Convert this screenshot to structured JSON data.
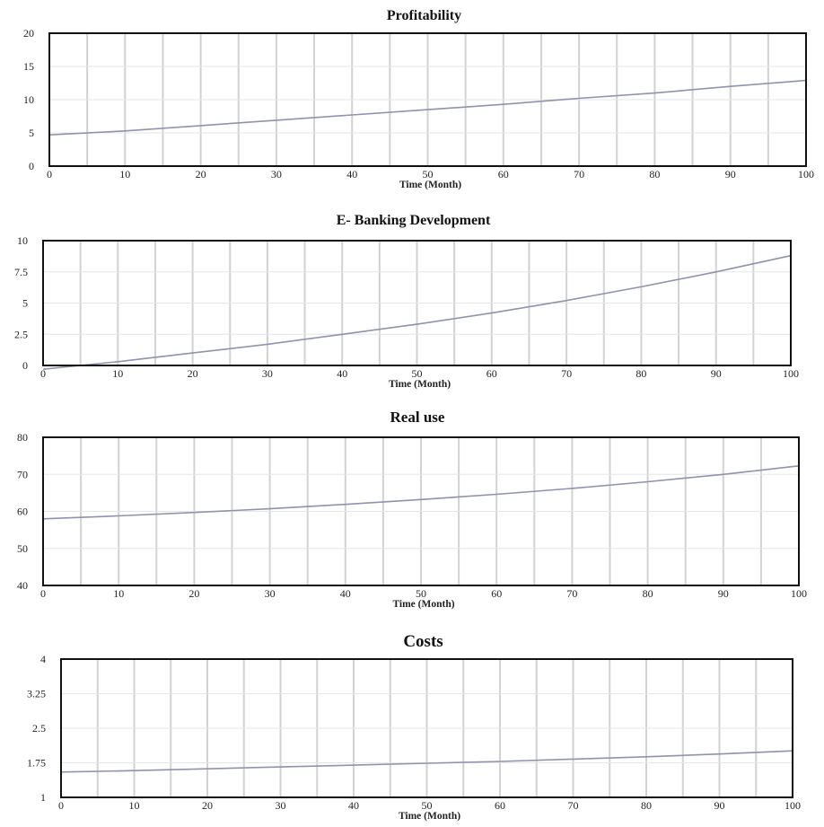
{
  "colors": {
    "series_line": "#8f93ad",
    "grid": "#d2d2d2",
    "frame": "#111111"
  },
  "chart_data": [
    {
      "type": "line",
      "title": "Profitability",
      "xlabel": "Time (Month)",
      "ylabel": "",
      "xlim": [
        0,
        100
      ],
      "ylim": [
        0,
        20
      ],
      "xticks": [
        "0",
        "10",
        "20",
        "30",
        "40",
        "50",
        "60",
        "70",
        "80",
        "90",
        "100"
      ],
      "yticks": [
        "0",
        "5",
        "10",
        "15",
        "20"
      ],
      "grid": "vertical",
      "series": [
        {
          "x": [
            0,
            10,
            20,
            30,
            40,
            50,
            60,
            70,
            80,
            90,
            100
          ],
          "y": [
            4.7,
            5.3,
            6.1,
            6.9,
            7.7,
            8.5,
            9.3,
            10.2,
            11.0,
            12.0,
            12.9
          ]
        }
      ]
    },
    {
      "type": "line",
      "title": "E- Banking Development",
      "xlabel": "Time (Month)",
      "ylabel": "",
      "xlim": [
        0,
        100
      ],
      "ylim": [
        0,
        10
      ],
      "xticks": [
        "0",
        "10",
        "20",
        "30",
        "40",
        "50",
        "60",
        "70",
        "80",
        "90",
        "100"
      ],
      "yticks": [
        "0",
        "2.5",
        "5",
        "7.5",
        "10"
      ],
      "grid": "vertical",
      "series": [
        {
          "x": [
            0,
            10,
            20,
            30,
            40,
            50,
            60,
            70,
            80,
            90,
            100
          ],
          "y": [
            -0.3,
            0.3,
            1.0,
            1.7,
            2.5,
            3.3,
            4.2,
            5.2,
            6.3,
            7.5,
            8.8
          ]
        }
      ]
    },
    {
      "type": "line",
      "title": "Real use",
      "xlabel": "Time (Month)",
      "ylabel": "",
      "xlim": [
        0,
        100
      ],
      "ylim": [
        40,
        80
      ],
      "xticks": [
        "0",
        "10",
        "20",
        "30",
        "40",
        "50",
        "60",
        "70",
        "80",
        "90",
        "100"
      ],
      "yticks": [
        "40",
        "50",
        "60",
        "70",
        "80"
      ],
      "grid": "vertical",
      "series": [
        {
          "x": [
            0,
            10,
            20,
            30,
            40,
            50,
            60,
            70,
            80,
            90,
            100
          ],
          "y": [
            58.0,
            58.8,
            59.7,
            60.7,
            61.9,
            63.2,
            64.6,
            66.2,
            68.0,
            70.0,
            72.3
          ]
        }
      ]
    },
    {
      "type": "line",
      "title": "Costs",
      "xlabel": "Time (Month)",
      "ylabel": "",
      "xlim": [
        0,
        100
      ],
      "ylim": [
        1,
        4
      ],
      "xticks": [
        "0",
        "10",
        "20",
        "30",
        "40",
        "50",
        "60",
        "70",
        "80",
        "90",
        "100"
      ],
      "yticks": [
        "1",
        "1.75",
        "2.5",
        "3.25",
        "4"
      ],
      "grid": "vertical",
      "series": [
        {
          "x": [
            0,
            10,
            20,
            30,
            40,
            50,
            60,
            70,
            80,
            90,
            100
          ],
          "y": [
            1.55,
            1.58,
            1.62,
            1.66,
            1.7,
            1.74,
            1.78,
            1.83,
            1.88,
            1.94,
            2.01
          ]
        }
      ]
    }
  ]
}
